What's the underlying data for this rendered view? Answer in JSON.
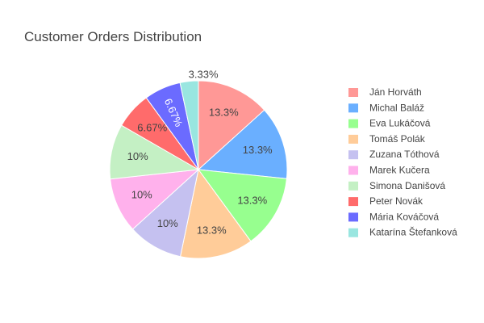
{
  "chart_data": {
    "type": "pie",
    "title": "Customer Orders Distribution",
    "direction": "clockwise",
    "start_angle_from_top_deg": 0,
    "legend_placement": "right",
    "slices": [
      {
        "label": "Ján Horváth",
        "value": 13.3,
        "text": "13.3%",
        "color": "#FF9896",
        "text_position": "inside"
      },
      {
        "label": "Michal Baláž",
        "value": 13.3,
        "text": "13.3%",
        "color": "#6AAFFF",
        "text_position": "inside"
      },
      {
        "label": "Eva Lukáčová",
        "value": 13.3,
        "text": "13.3%",
        "color": "#97FF8F",
        "text_position": "inside"
      },
      {
        "label": "Tomáš Polák",
        "value": 13.3,
        "text": "13.3%",
        "color": "#FFCC99",
        "text_position": "inside"
      },
      {
        "label": "Zuzana Tóthová",
        "value": 10,
        "text": "10%",
        "color": "#C5C1F0",
        "text_position": "inside"
      },
      {
        "label": "Marek Kučera",
        "value": 10,
        "text": "10%",
        "color": "#FFB1EC",
        "text_position": "inside"
      },
      {
        "label": "Simona Danišová",
        "value": 10,
        "text": "10%",
        "color": "#C4F0C4",
        "text_position": "inside"
      },
      {
        "label": "Peter Novák",
        "value": 6.67,
        "text": "6.67%",
        "color": "#FF6B6B",
        "text_position": "inside"
      },
      {
        "label": "Mária Kováčová",
        "value": 6.67,
        "text": "6.67%",
        "color": "#6B6BFF",
        "text_position": "inside"
      },
      {
        "label": "Katarína Štefanková",
        "value": 3.33,
        "text": "3.33%",
        "color": "#99E6E0",
        "text_position": "outside"
      }
    ]
  }
}
